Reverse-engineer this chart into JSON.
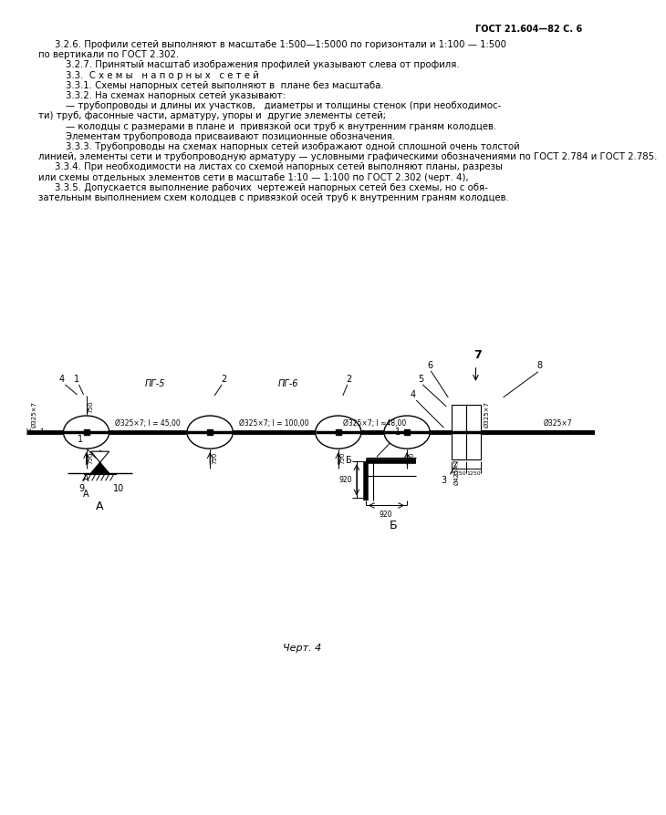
{
  "page_header": "ГОСТ 21.604—82 С. 6",
  "bg_color": "#ffffff",
  "line_color": "#000000",
  "chart_caption": "Черт. 4",
  "text_lines": [
    {
      "indent": 1,
      "text": "3.2.6. Профили сетей выполняют в масштабе 1:500—1:5000 по горизонтали и 1:100 — 1:500"
    },
    {
      "indent": 0,
      "text": "по вертикали по ГОСТ 2.302."
    },
    {
      "indent": 2,
      "text": "3.2.7. Принятый масштаб изображения профилей указывают слева от профиля."
    },
    {
      "indent": 2,
      "text": "3.3.  С х е м ы   н а п о р н ы х   с е т е й"
    },
    {
      "indent": 2,
      "text": "3.3.1. Схемы напорных сетей выполняют в  плане без масштаба."
    },
    {
      "indent": 2,
      "text": "3.3.2. На схемах напорных сетей указывают:"
    },
    {
      "indent": 2,
      "text": "— трубопроводы и длины их участков,   диаметры и толщины стенок (при необходимос-"
    },
    {
      "indent": 0,
      "text": "ти) труб, фасонные части, арматуру, упоры и  другие элементы сетей;"
    },
    {
      "indent": 2,
      "text": "— колодцы с размерами в плане и  привязкой оси труб к внутренним граням колодцев."
    },
    {
      "indent": 2,
      "text": "Элементам трубопровода присваивают позиционные обозначения."
    },
    {
      "indent": 2,
      "text": "3.3.3. Трубопроводы на схемах напорных сетей изображают одной сплошной очень толстой"
    },
    {
      "indent": 0,
      "text": "линией, элементы сети и трубопроводную арматуру — условными графическими обозначениями по ГОСТ 2.784 и ГОСТ 2.785."
    },
    {
      "indent": 1,
      "text": "3.3.4. При необходимости на листах со схемой напорных сетей выполняют планы, разрезы"
    },
    {
      "indent": 0,
      "text": "или схемы отдельных элементов сети в масштабе 1:10 — 1:100 по ГОСТ 2.302 (черт. 4),"
    },
    {
      "indent": 1,
      "text": "3.3.5. Допускается выполнение рабочих  чертежей напорных сетей без схемы, но с обя-"
    },
    {
      "indent": 0,
      "text": "зательным выполнением схем колодцев с привязкой осей труб к внутренним граням колодцев."
    }
  ]
}
